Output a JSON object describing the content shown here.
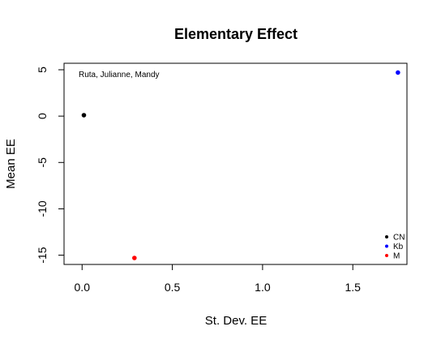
{
  "chart_data": {
    "type": "scatter",
    "title": "Elementary Effect",
    "xlabel": "St. Dev. EE",
    "ylabel": "Mean EE",
    "annotation": "Ruta, Julianne, Mandy",
    "xlim": [
      -0.1,
      1.8
    ],
    "ylim": [
      -16.0,
      5.7
    ],
    "xticks": [
      0.0,
      0.5,
      1.0,
      1.5
    ],
    "xtick_labels": [
      "0.0",
      "0.5",
      "1.0",
      "1.5"
    ],
    "yticks": [
      -15,
      -10,
      -5,
      0,
      5
    ],
    "ytick_labels": [
      "-15",
      "-10",
      "-5",
      "0",
      "5"
    ],
    "grid": false,
    "legend_position": "bottom-right",
    "series": [
      {
        "name": "CN",
        "color": "#000000",
        "x": [
          0.01
        ],
        "y": [
          0.1
        ]
      },
      {
        "name": "Kb",
        "color": "#0000ff",
        "x": [
          1.75
        ],
        "y": [
          4.7
        ]
      },
      {
        "name": "M",
        "color": "#ff0000",
        "x": [
          0.29
        ],
        "y": [
          -15.3
        ]
      }
    ]
  }
}
